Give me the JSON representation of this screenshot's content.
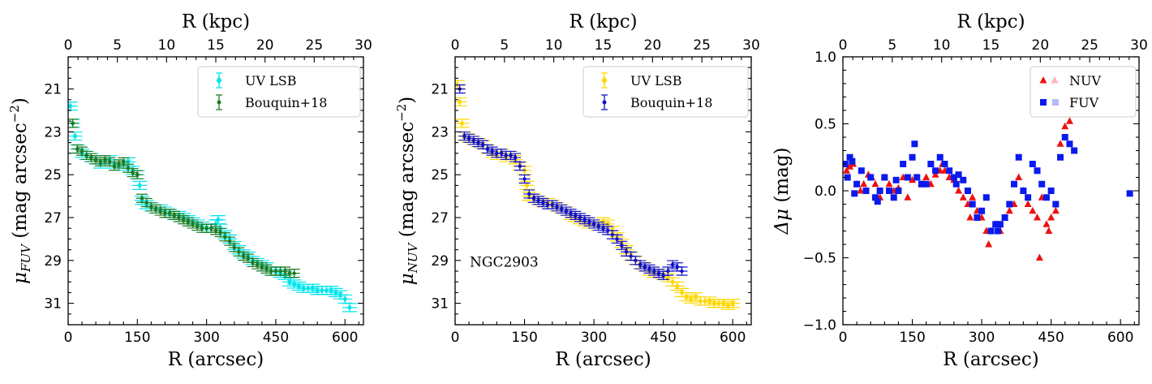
{
  "chart_data": [
    {
      "type": "scatter",
      "panel": "left",
      "xlabel": "R (arcsec)",
      "ylabel": "μ_FUV (mag arcsec⁻²)",
      "ylabel_main": "μ",
      "ylabel_sub": "FUV",
      "ylabel_rest": " (mag arcsec",
      "ylabel_sup": "−2",
      "ylabel_close": ")",
      "top_xlabel": "R (kpc)",
      "xlim": [
        0,
        640
      ],
      "ylim": [
        32,
        19.5
      ],
      "top_xlim": [
        0,
        30
      ],
      "xticks": [
        0,
        150,
        300,
        450,
        600
      ],
      "yticks": [
        21,
        23,
        25,
        27,
        29,
        31
      ],
      "top_xticks": [
        0,
        5,
        10,
        15,
        20,
        25,
        30
      ],
      "legend_position": "top-right",
      "series": [
        {
          "name": "UV LSB",
          "color": "#00e5ee",
          "marker": "diamond",
          "x": [
            5,
            10,
            15,
            20,
            30,
            40,
            50,
            60,
            70,
            80,
            90,
            100,
            110,
            120,
            130,
            140,
            150,
            155,
            160,
            170,
            180,
            190,
            200,
            210,
            220,
            230,
            240,
            250,
            260,
            270,
            280,
            290,
            300,
            310,
            320,
            325,
            330,
            340,
            350,
            360,
            370,
            380,
            390,
            400,
            410,
            420,
            430,
            440,
            450,
            460,
            470,
            480,
            490,
            500,
            510,
            520,
            530,
            540,
            550,
            560,
            570,
            580,
            590,
            600,
            610
          ],
          "y": [
            21.8,
            22.6,
            23.2,
            23.8,
            24.0,
            24.1,
            24.2,
            24.3,
            24.5,
            24.4,
            24.3,
            24.5,
            24.6,
            24.5,
            24.4,
            24.8,
            25.0,
            25.5,
            26.2,
            26.4,
            26.5,
            26.6,
            26.6,
            26.7,
            26.8,
            26.9,
            26.9,
            27.0,
            27.1,
            27.2,
            27.3,
            27.4,
            27.5,
            27.5,
            27.3,
            27.1,
            27.5,
            27.8,
            28.0,
            28.3,
            28.5,
            28.7,
            28.8,
            29.0,
            29.1,
            29.2,
            29.3,
            29.5,
            29.5,
            29.6,
            29.7,
            30.0,
            30.1,
            30.2,
            30.3,
            30.3,
            30.3,
            30.4,
            30.4,
            30.4,
            30.4,
            30.5,
            30.6,
            30.8,
            31.2
          ]
        },
        {
          "name": "Bouquin+18",
          "color": "#1f7a1f",
          "marker": "circle",
          "x": [
            10,
            20,
            30,
            40,
            50,
            60,
            70,
            80,
            90,
            100,
            110,
            120,
            130,
            140,
            150,
            160,
            170,
            180,
            190,
            200,
            210,
            220,
            230,
            240,
            250,
            260,
            270,
            280,
            290,
            300,
            310,
            320,
            330,
            340,
            350,
            360,
            370,
            380,
            390,
            400,
            410,
            420,
            430,
            440,
            450,
            460,
            470,
            480,
            490
          ],
          "y": [
            22.6,
            23.8,
            23.9,
            24.1,
            24.2,
            24.3,
            24.4,
            24.3,
            24.4,
            24.6,
            24.5,
            24.4,
            24.7,
            24.9,
            25.0,
            26.1,
            26.3,
            26.5,
            26.6,
            26.7,
            26.8,
            26.8,
            26.9,
            27.0,
            27.1,
            27.2,
            27.3,
            27.4,
            27.5,
            27.5,
            27.5,
            27.6,
            27.7,
            27.9,
            28.1,
            28.4,
            28.6,
            28.8,
            28.9,
            29.1,
            29.2,
            29.3,
            29.4,
            29.5,
            29.5,
            29.5,
            29.5,
            29.6,
            29.6
          ]
        }
      ]
    },
    {
      "type": "scatter",
      "panel": "middle",
      "xlabel": "R (arcsec)",
      "ylabel": "μ_NUV (mag arcsec⁻²)",
      "ylabel_main": "μ",
      "ylabel_sub": "NUV",
      "ylabel_rest": " (mag arcsec",
      "ylabel_sup": "−2",
      "ylabel_close": ")",
      "top_xlabel": "R (kpc)",
      "annotation": "NGC2903",
      "xlim": [
        0,
        640
      ],
      "ylim": [
        32,
        19.5
      ],
      "top_xlim": [
        0,
        30
      ],
      "xticks": [
        0,
        150,
        300,
        450,
        600
      ],
      "yticks": [
        21,
        23,
        25,
        27,
        29,
        31
      ],
      "top_xticks": [
        0,
        5,
        10,
        15,
        20,
        25,
        30
      ],
      "legend_position": "top-right",
      "series": [
        {
          "name": "UV LSB",
          "color": "#ffd700",
          "marker": "diamond",
          "x": [
            5,
            10,
            15,
            20,
            30,
            40,
            50,
            60,
            70,
            80,
            90,
            100,
            110,
            120,
            130,
            140,
            150,
            155,
            160,
            170,
            180,
            190,
            200,
            210,
            220,
            230,
            240,
            250,
            260,
            270,
            280,
            290,
            300,
            310,
            320,
            330,
            340,
            350,
            360,
            370,
            380,
            390,
            400,
            410,
            420,
            430,
            440,
            450,
            460,
            470,
            480,
            490,
            500,
            510,
            520,
            530,
            540,
            550,
            560,
            570,
            580,
            590,
            600
          ],
          "y": [
            20.8,
            21.6,
            22.6,
            23.2,
            23.3,
            23.4,
            23.5,
            23.6,
            23.8,
            24.0,
            24.1,
            24.0,
            24.2,
            24.1,
            24.3,
            24.6,
            24.8,
            25.5,
            26.0,
            26.1,
            26.2,
            26.3,
            26.3,
            26.4,
            26.5,
            26.6,
            26.7,
            26.9,
            27.0,
            27.1,
            27.2,
            27.3,
            27.3,
            27.4,
            27.2,
            27.3,
            27.6,
            27.9,
            28.2,
            28.5,
            28.8,
            29.0,
            29.2,
            29.3,
            29.5,
            29.6,
            29.6,
            29.7,
            29.8,
            30.0,
            30.2,
            30.5,
            30.7,
            30.8,
            30.7,
            30.9,
            30.9,
            30.9,
            31.0,
            31.0,
            31.0,
            31.1,
            31.0
          ]
        },
        {
          "name": "Bouquin+18",
          "color": "#1010c8",
          "marker": "circle",
          "x": [
            10,
            20,
            30,
            40,
            50,
            60,
            70,
            80,
            90,
            100,
            110,
            120,
            130,
            140,
            150,
            160,
            170,
            180,
            190,
            200,
            210,
            220,
            230,
            240,
            250,
            260,
            270,
            280,
            290,
            300,
            310,
            320,
            330,
            340,
            350,
            360,
            370,
            380,
            390,
            400,
            410,
            420,
            430,
            440,
            450,
            460,
            470,
            480,
            490
          ],
          "y": [
            21.0,
            23.2,
            23.3,
            23.4,
            23.5,
            23.6,
            23.8,
            23.9,
            24.0,
            24.0,
            24.1,
            24.1,
            24.2,
            24.6,
            25.2,
            25.9,
            26.1,
            26.2,
            26.3,
            26.4,
            26.4,
            26.5,
            26.6,
            26.7,
            26.8,
            26.9,
            27.0,
            27.1,
            27.2,
            27.3,
            27.4,
            27.5,
            27.6,
            27.8,
            28.0,
            28.3,
            28.6,
            28.8,
            29.0,
            29.2,
            29.3,
            29.4,
            29.5,
            29.6,
            29.7,
            29.5,
            29.2,
            29.3,
            29.5
          ]
        }
      ]
    },
    {
      "type": "scatter",
      "panel": "right",
      "xlabel": "R (arcsec)",
      "ylabel": "Δμ (mag)",
      "ylabel_main": "Δμ",
      "ylabel_rest": " (mag)",
      "top_xlabel": "R (kpc)",
      "xlim": [
        0,
        640
      ],
      "ylim": [
        -1.0,
        1.0
      ],
      "top_xlim": [
        0,
        30
      ],
      "xticks": [
        0,
        150,
        300,
        450,
        600
      ],
      "yticks": [
        -1.0,
        -0.5,
        0.0,
        0.5,
        1.0
      ],
      "ytick_labels": [
        "−1.0",
        "−0.5",
        "0.0",
        "0.5",
        "1.0"
      ],
      "top_xticks": [
        0,
        5,
        10,
        15,
        20,
        25,
        30
      ],
      "legend_position": "top-right",
      "series": [
        {
          "name": "NUV",
          "color": "#ee1111",
          "marker": "triangle",
          "x": [
            8,
            15,
            22,
            30,
            38,
            45,
            55,
            62,
            70,
            80,
            90,
            100,
            110,
            120,
            130,
            140,
            150,
            160,
            170,
            180,
            190,
            200,
            210,
            215,
            220,
            230,
            240,
            250,
            260,
            270,
            275,
            280,
            290,
            300,
            310,
            315,
            320,
            330,
            340,
            350,
            360,
            370,
            380,
            390,
            400,
            410,
            420,
            425,
            430,
            440,
            445,
            450,
            460,
            470,
            480,
            490
          ],
          "y": [
            0.15,
            0.18,
            0.2,
            0.05,
            0.0,
            0.05,
            0.12,
            0.1,
            0.05,
            -0.05,
            0.1,
            0.05,
            0.0,
            0.02,
            0.1,
            -0.05,
            0.08,
            0.1,
            0.05,
            0.1,
            0.05,
            0.12,
            0.15,
            0.2,
            0.15,
            0.1,
            0.08,
            0.0,
            -0.05,
            -0.1,
            -0.2,
            -0.05,
            -0.15,
            -0.2,
            -0.3,
            -0.4,
            -0.3,
            -0.25,
            -0.3,
            -0.2,
            -0.15,
            -0.1,
            0.1,
            0.0,
            -0.1,
            -0.15,
            -0.2,
            -0.5,
            -0.05,
            -0.25,
            -0.3,
            -0.2,
            -0.15,
            0.35,
            0.48,
            0.52
          ]
        },
        {
          "name": "FUV",
          "color": "#0a1aee",
          "marker": "square",
          "x": [
            5,
            10,
            15,
            20,
            25,
            30,
            40,
            50,
            60,
            70,
            75,
            80,
            90,
            100,
            110,
            115,
            120,
            130,
            140,
            150,
            155,
            160,
            170,
            180,
            190,
            200,
            210,
            220,
            230,
            240,
            245,
            250,
            260,
            270,
            280,
            290,
            300,
            310,
            320,
            330,
            335,
            340,
            350,
            360,
            370,
            380,
            390,
            400,
            410,
            420,
            430,
            440,
            450,
            460,
            470,
            480,
            490,
            500,
            620
          ],
          "y": [
            0.2,
            0.1,
            0.25,
            0.22,
            -0.02,
            0.05,
            0.15,
            0.0,
            0.1,
            -0.05,
            -0.08,
            0.0,
            0.1,
            0.0,
            -0.05,
            0.08,
            0.0,
            0.2,
            0.1,
            0.25,
            0.35,
            0.1,
            0.05,
            0.05,
            0.2,
            0.15,
            0.25,
            0.2,
            0.15,
            0.1,
            0.05,
            0.12,
            0.08,
            0.0,
            -0.1,
            -0.2,
            -0.15,
            -0.05,
            -0.3,
            -0.25,
            -0.3,
            -0.25,
            -0.2,
            -0.1,
            0.05,
            0.25,
            0.0,
            -0.05,
            0.2,
            0.15,
            0.05,
            -0.05,
            0.0,
            -0.1,
            0.25,
            0.4,
            0.35,
            0.3,
            -0.02
          ]
        }
      ]
    }
  ]
}
